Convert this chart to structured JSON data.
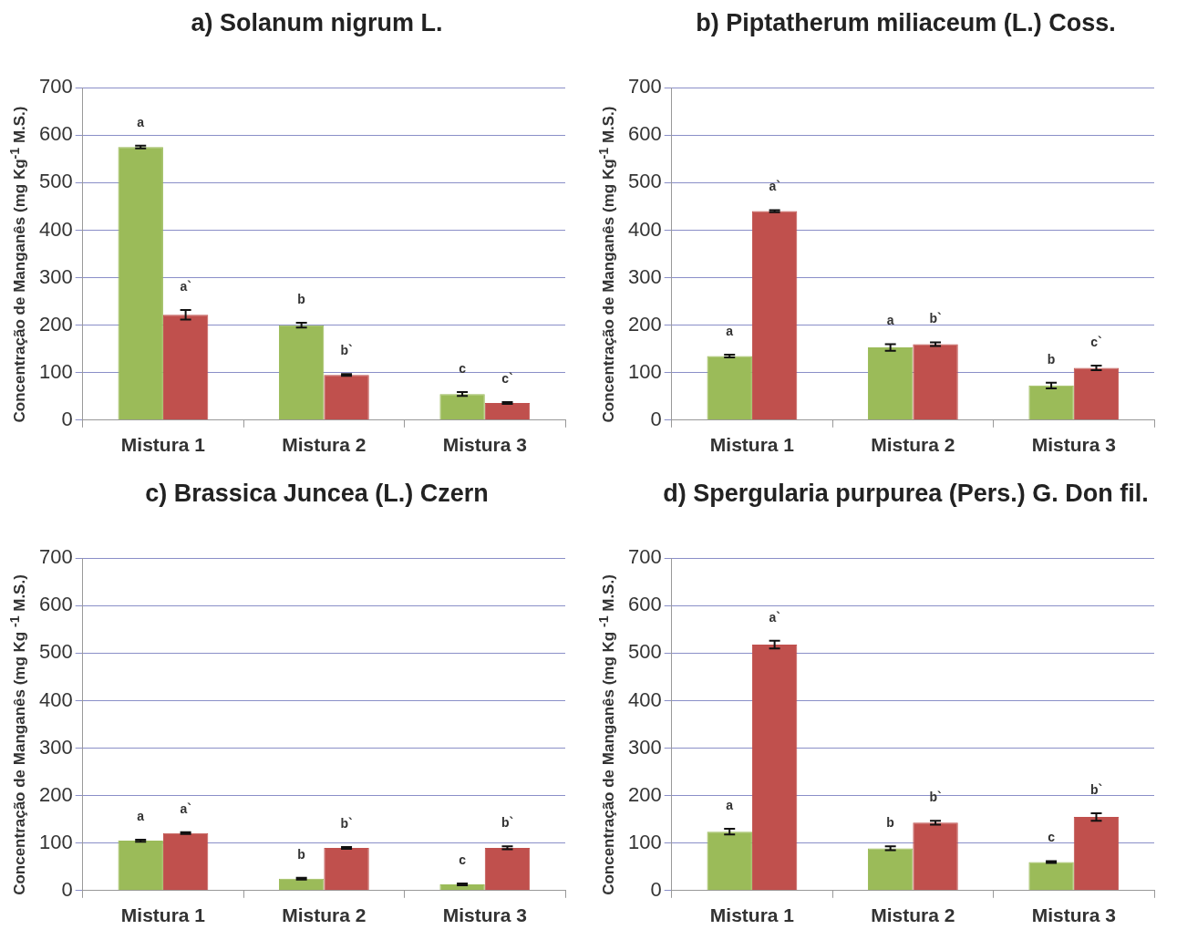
{
  "chart_data": [
    {
      "type": "bar",
      "title": "a) Solanum nigrum L.",
      "ylabel": "Concentração de Manganês  (mg Kg$^{-1}$ M.S.)",
      "categories": [
        "Mistura 1",
        "Mistura 2",
        "Mistura 3"
      ],
      "ylim": [
        0,
        700
      ],
      "yticks": [
        0,
        100,
        200,
        300,
        400,
        500,
        600,
        700
      ],
      "grid": "y",
      "series": [
        {
          "color": "#9bbb59",
          "values": [
            575,
            200,
            55
          ],
          "errors": [
            3,
            5,
            4
          ],
          "value_labels": [
            "a",
            "b",
            "c"
          ]
        },
        {
          "color": "#c0504d",
          "values": [
            222,
            95,
            36
          ],
          "errors": [
            10,
            2,
            2
          ],
          "value_labels": [
            "a`",
            "b`",
            "c`"
          ]
        }
      ]
    },
    {
      "type": "bar",
      "title": "b) Piptatherum miliaceum (L.) Coss.",
      "ylabel": "Concentração de  Manganês  (mg Kg$^{-1}$ M.S.)",
      "categories": [
        "Mistura 1",
        "Mistura 2",
        "Mistura 3"
      ],
      "ylim": [
        0,
        700
      ],
      "yticks": [
        0,
        100,
        200,
        300,
        400,
        500,
        600,
        700
      ],
      "grid": "y",
      "series": [
        {
          "color": "#9bbb59",
          "values": [
            135,
            153,
            73
          ],
          "errors": [
            3,
            7,
            6
          ],
          "value_labels": [
            "a",
            "a",
            "b"
          ]
        },
        {
          "color": "#c0504d",
          "values": [
            440,
            160,
            110
          ],
          "errors": [
            2,
            4,
            5
          ],
          "value_labels": [
            "a`",
            "b`",
            "c`"
          ]
        }
      ]
    },
    {
      "type": "bar",
      "title": "c) Brassica Juncea (L.) Czern",
      "ylabel": "Concentração de Manganês  (mg Kg $^{-1}$ M.S.)",
      "categories": [
        "Mistura 1",
        "Mistura 2",
        "Mistura 3"
      ],
      "ylim": [
        0,
        700
      ],
      "yticks": [
        0,
        100,
        200,
        300,
        400,
        500,
        600,
        700
      ],
      "grid": "y",
      "series": [
        {
          "color": "#9bbb59",
          "values": [
            105,
            25,
            13
          ],
          "errors": [
            2,
            2,
            2
          ],
          "value_labels": [
            "a",
            "b",
            "c"
          ]
        },
        {
          "color": "#c0504d",
          "values": [
            121,
            90,
            90
          ],
          "errors": [
            2,
            2,
            3
          ],
          "value_labels": [
            "a`",
            "b`",
            "b`"
          ]
        }
      ]
    },
    {
      "type": "bar",
      "title": "d) Spergularia purpurea (Pers.) G. Don fil.",
      "ylabel": "Concentração de Manganês  (mg Kg $^{-1}$ M.S.)",
      "categories": [
        "Mistura 1",
        "Mistura 2",
        "Mistura 3"
      ],
      "ylim": [
        0,
        700
      ],
      "yticks": [
        0,
        100,
        200,
        300,
        400,
        500,
        600,
        700
      ],
      "grid": "y",
      "series": [
        {
          "color": "#9bbb59",
          "values": [
            124,
            89,
            60
          ],
          "errors": [
            6,
            4,
            2
          ],
          "value_labels": [
            "a",
            "b",
            "c"
          ]
        },
        {
          "color": "#c0504d",
          "values": [
            518,
            143,
            155
          ],
          "errors": [
            8,
            4,
            8
          ],
          "value_labels": [
            "a`",
            "b`",
            "b`"
          ]
        }
      ]
    }
  ]
}
